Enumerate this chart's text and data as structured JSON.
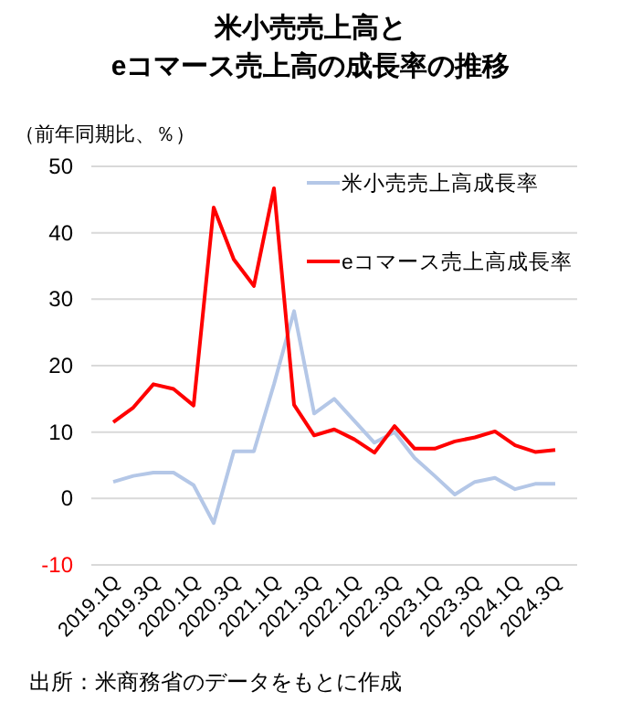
{
  "chart_data": {
    "type": "line",
    "title": "米小売売上高と\neコマース売上高の成長率の推移",
    "ylabel": "（前年同期比、％）",
    "categories": [
      "2019.1Q",
      null,
      "2019.3Q",
      null,
      "2020.1Q",
      null,
      "2020.3Q",
      null,
      "2021.1Q",
      null,
      "2021.3Q",
      null,
      "2022.1Q",
      null,
      "2022.3Q",
      null,
      "2023.1Q",
      null,
      "2023.3Q",
      null,
      "2024.1Q",
      null,
      "2024.3Q"
    ],
    "series": [
      {
        "name": "米小売売上高成長率",
        "color": "#b4c7e7",
        "values": [
          2.5,
          3.4,
          3.9,
          3.9,
          2.0,
          -3.7,
          7.1,
          7.1,
          17.2,
          28.2,
          12.8,
          15.0,
          11.7,
          8.4,
          10.0,
          6.1,
          3.4,
          0.6,
          2.5,
          3.1,
          1.4,
          2.2,
          2.2
        ]
      },
      {
        "name": "eコマース売上高成長率",
        "color": "#ff0000",
        "values": [
          11.5,
          13.7,
          17.2,
          16.5,
          14.0,
          43.8,
          36.0,
          32.0,
          46.7,
          14.1,
          9.5,
          10.4,
          8.9,
          6.9,
          10.9,
          7.5,
          7.5,
          8.6,
          9.2,
          10.1,
          8.0,
          7.0,
          7.3
        ]
      }
    ],
    "ylim": [
      -10,
      50
    ],
    "yticks": [
      -10,
      0,
      10,
      20,
      30,
      40,
      50
    ],
    "grid": "y",
    "legend": "top right",
    "marker": "none",
    "line_style": "solid",
    "annotations": [
      "出所：米商務省のデータをもとに作成"
    ]
  }
}
